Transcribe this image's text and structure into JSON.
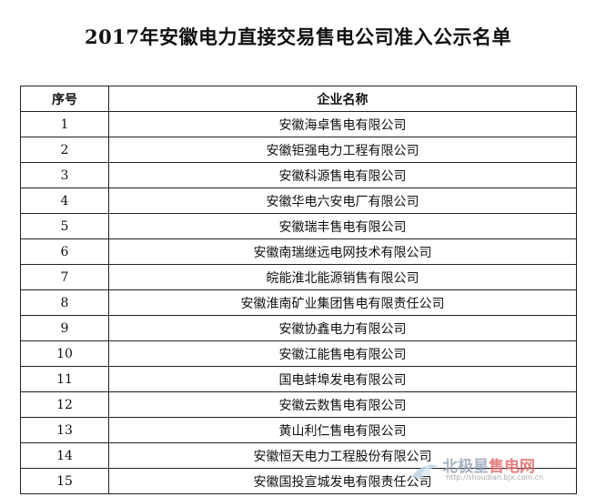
{
  "title": "2017年安徽电力直接交易售电公司准入公示名单",
  "table": {
    "headers": [
      "序号",
      "企业名称"
    ],
    "rows": [
      [
        "1",
        "安徽海卓售电有限公司"
      ],
      [
        "2",
        "安徽钜强电力工程有限公司"
      ],
      [
        "3",
        "安徽科源售电有限公司"
      ],
      [
        "4",
        "安徽华电六安电厂有限公司"
      ],
      [
        "5",
        "安徽瑞丰售电有限公司"
      ],
      [
        "6",
        "安徽南瑞继远电网技术有限公司"
      ],
      [
        "7",
        "皖能淮北能源销售有限公司"
      ],
      [
        "8",
        "安徽淮南矿业集团售电有限责任公司"
      ],
      [
        "9",
        "安徽协鑫电力有限公司"
      ],
      [
        "10",
        "安徽江能售电有限公司"
      ],
      [
        "11",
        "国电蚌埠发电有限公司"
      ],
      [
        "12",
        "安徽云数售电有限公司"
      ],
      [
        "13",
        "黄山利仁售电有限公司"
      ],
      [
        "14",
        "安徽恒天电力工程股份有限公司"
      ],
      [
        "15",
        "安徽国投宣城发电有限责任公司"
      ]
    ]
  },
  "watermark": {
    "name_part1": "北极星",
    "name_part2": "售电网",
    "url": "http://shoudian.bjx.com.cn",
    "colors": {
      "grey": "#9aa8b8",
      "red": "#e26b6b"
    }
  }
}
